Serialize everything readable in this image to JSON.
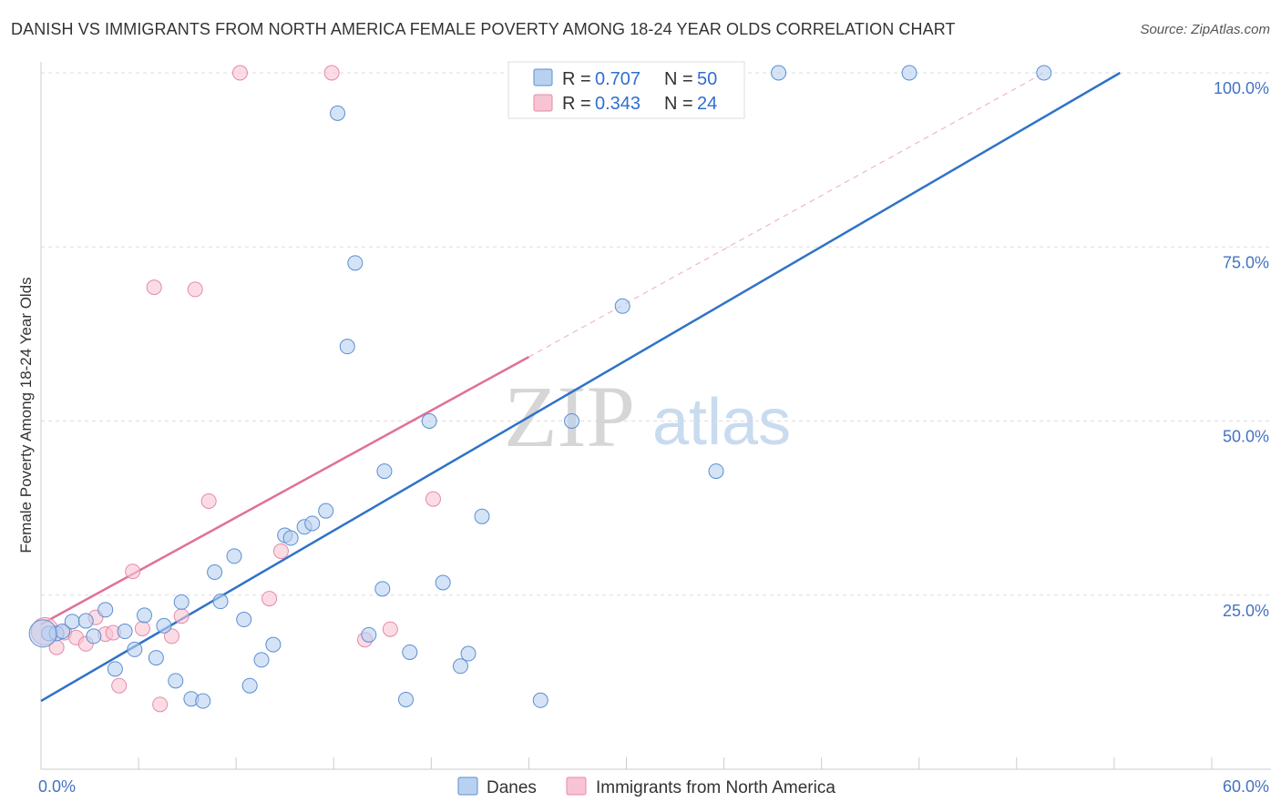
{
  "header": {
    "title": "DANISH VS IMMIGRANTS FROM NORTH AMERICA FEMALE POVERTY AMONG 18-24 YEAR OLDS CORRELATION CHART",
    "source": "Source: ZipAtlas.com"
  },
  "watermark": {
    "zip": "ZIP",
    "atlas": "atlas"
  },
  "legend_top": {
    "rows": [
      {
        "r_label": "R = ",
        "r_value": "0.707",
        "n_label": "N = ",
        "n_value": "50"
      },
      {
        "r_label": "R = ",
        "r_value": "0.343",
        "n_label": "N = ",
        "n_value": "24"
      }
    ]
  },
  "legend_bottom": {
    "items": [
      {
        "label": "Danes"
      },
      {
        "label": "Immigrants from North America"
      }
    ]
  },
  "colors": {
    "danes_fill": "#b9d1f0",
    "danes_stroke": "#5b8fd1",
    "danes_line": "#2f72c9",
    "imm_fill": "#f8c4d3",
    "imm_stroke": "#e58aa8",
    "imm_line": "#e0709a",
    "grid": "#dddddd",
    "axis_text": "#4472c4"
  },
  "chart_data": {
    "type": "scatter",
    "title": "DANISH VS IMMIGRANTS FROM NORTH AMERICA FEMALE POVERTY AMONG 18-24 YEAR OLDS CORRELATION CHART",
    "xlabel": "",
    "ylabel": "Female Poverty Among 18-24 Year Olds",
    "xlim": [
      0,
      60
    ],
    "ylim": [
      0,
      102
    ],
    "x_tick_labels": [
      {
        "value": 0,
        "label": "0.0%"
      },
      {
        "value": 60,
        "label": "60.0%"
      }
    ],
    "y_tick_labels": [
      {
        "value": 25,
        "label": "25.0%"
      },
      {
        "value": 50,
        "label": "50.0%"
      },
      {
        "value": 75,
        "label": "75.0%"
      },
      {
        "value": 100,
        "label": "100.0%"
      }
    ],
    "series": [
      {
        "name": "Danes",
        "r": 0.707,
        "n": 50,
        "points": [
          [
            0.4,
            19.5
          ],
          [
            0.8,
            19.5
          ],
          [
            1.1,
            19.8
          ],
          [
            1.6,
            21.2
          ],
          [
            2.3,
            21.3
          ],
          [
            2.7,
            19.1
          ],
          [
            3.3,
            22.9
          ],
          [
            3.8,
            14.4
          ],
          [
            4.3,
            19.8
          ],
          [
            4.8,
            17.2
          ],
          [
            5.3,
            22.1
          ],
          [
            5.9,
            16.0
          ],
          [
            6.3,
            20.6
          ],
          [
            6.9,
            12.7
          ],
          [
            7.2,
            24.0
          ],
          [
            7.7,
            10.1
          ],
          [
            8.3,
            9.8
          ],
          [
            8.9,
            28.3
          ],
          [
            9.2,
            24.1
          ],
          [
            9.9,
            30.6
          ],
          [
            10.4,
            21.5
          ],
          [
            10.7,
            12.0
          ],
          [
            11.3,
            15.7
          ],
          [
            11.9,
            17.9
          ],
          [
            12.5,
            33.6
          ],
          [
            12.8,
            33.2
          ],
          [
            13.5,
            34.8
          ],
          [
            13.9,
            35.3
          ],
          [
            14.6,
            37.1
          ],
          [
            15.2,
            94.2
          ],
          [
            15.7,
            60.7
          ],
          [
            16.1,
            72.7
          ],
          [
            16.8,
            19.3
          ],
          [
            17.5,
            25.9
          ],
          [
            17.6,
            42.8
          ],
          [
            18.7,
            10.0
          ],
          [
            18.9,
            16.8
          ],
          [
            19.9,
            50.0
          ],
          [
            20.6,
            26.8
          ],
          [
            21.5,
            14.8
          ],
          [
            21.9,
            16.6
          ],
          [
            22.6,
            36.3
          ],
          [
            25.6,
            9.9
          ],
          [
            27.2,
            50.0
          ],
          [
            29.8,
            66.5
          ],
          [
            34.6,
            42.8
          ],
          [
            37.8,
            100.0
          ],
          [
            44.5,
            100.0
          ],
          [
            51.4,
            100.0
          ],
          [
            0.1,
            19.5
          ]
        ],
        "trend": {
          "x": [
            0,
            55.3
          ],
          "y": [
            9.8,
            100.0
          ]
        }
      },
      {
        "name": "Immigrants from North America",
        "r": 0.343,
        "n": 24,
        "points": [
          [
            0.2,
            19.8
          ],
          [
            0.8,
            17.5
          ],
          [
            1.2,
            19.6
          ],
          [
            1.8,
            18.9
          ],
          [
            2.3,
            18.0
          ],
          [
            2.8,
            21.8
          ],
          [
            3.3,
            19.4
          ],
          [
            3.7,
            19.6
          ],
          [
            4.0,
            12.0
          ],
          [
            4.7,
            28.4
          ],
          [
            5.2,
            20.2
          ],
          [
            5.8,
            69.2
          ],
          [
            6.1,
            9.3
          ],
          [
            6.7,
            19.1
          ],
          [
            7.2,
            22.0
          ],
          [
            7.9,
            68.9
          ],
          [
            8.6,
            38.5
          ],
          [
            10.2,
            100.0
          ],
          [
            11.7,
            24.5
          ],
          [
            12.3,
            31.3
          ],
          [
            14.9,
            100.0
          ],
          [
            16.6,
            18.6
          ],
          [
            17.9,
            20.1
          ],
          [
            20.1,
            38.8
          ]
        ],
        "trend": {
          "x": [
            0,
            25.0
          ],
          "y": [
            20.8,
            59.2
          ]
        },
        "trend_extension": {
          "x": [
            25.0,
            51.4
          ],
          "y": [
            59.2,
            100.0
          ]
        }
      }
    ]
  }
}
